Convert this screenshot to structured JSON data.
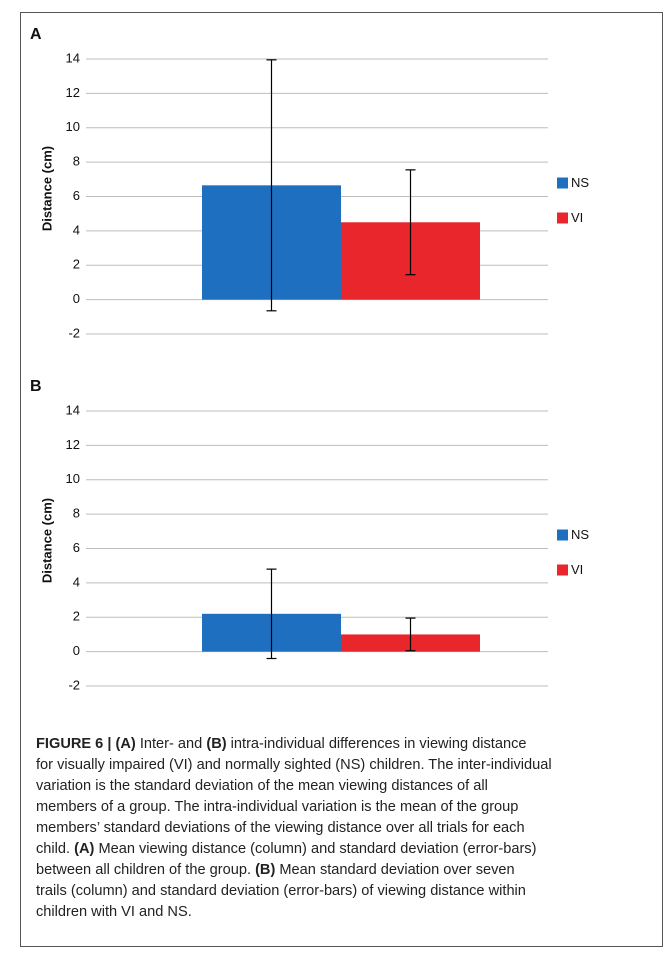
{
  "chart_data": [
    {
      "type": "bar",
      "panel": "A",
      "ylabel": "Distance (cm)",
      "categories": [
        null
      ],
      "series": [
        {
          "name": "NS",
          "color": "#1f6fc0",
          "values": [
            6.65
          ],
          "errors": [
            7.3
          ]
        },
        {
          "name": "VI",
          "color": "#e8262b",
          "values": [
            4.5
          ],
          "errors": [
            3.05
          ]
        }
      ],
      "ylim": [
        -2,
        14
      ],
      "yticks": [
        -2,
        0,
        2,
        4,
        6,
        8,
        10,
        12,
        14
      ],
      "grid": true,
      "legend": "right"
    },
    {
      "type": "bar",
      "panel": "B",
      "ylabel": "Distance (cm)",
      "categories": [
        null
      ],
      "series": [
        {
          "name": "NS",
          "color": "#1f6fc0",
          "values": [
            2.2
          ],
          "errors": [
            2.6
          ]
        },
        {
          "name": "VI",
          "color": "#e8262b",
          "values": [
            1.0
          ],
          "errors": [
            0.95
          ]
        }
      ],
      "ylim": [
        -2,
        14
      ],
      "yticks": [
        -2,
        0,
        2,
        4,
        6,
        8,
        10,
        12,
        14
      ],
      "grid": true,
      "legend": "right"
    }
  ],
  "caption": {
    "lines": [
      [
        {
          "text": "FIGURE 6 | (A)",
          "bold": true
        },
        {
          "text": " Inter- and "
        },
        {
          "text": "(B)",
          "bold": true
        },
        {
          "text": " intra-individual differences in viewing distance"
        }
      ],
      [
        {
          "text": "for visually impaired (VI) and normally sighted (NS) children. The inter-individual"
        }
      ],
      [
        {
          "text": "variation is the standard deviation of the mean viewing distances of all"
        }
      ],
      [
        {
          "text": "members of a group. The intra-individual variation is the mean of the group"
        }
      ],
      [
        {
          "text": "members’ standard deviations of the viewing distance over all trials for each"
        }
      ],
      [
        {
          "text": "child. "
        },
        {
          "text": "(A)",
          "bold": true
        },
        {
          "text": " Mean viewing distance (column) and standard deviation (error-bars)"
        }
      ],
      [
        {
          "text": "between all children of the group. "
        },
        {
          "text": "(B)",
          "bold": true
        },
        {
          "text": " Mean standard deviation over seven"
        }
      ],
      [
        {
          "text": "trails (column) and standard deviation (error-bars) of viewing distance within"
        }
      ],
      [
        {
          "text": "children with VI and NS."
        }
      ]
    ]
  }
}
